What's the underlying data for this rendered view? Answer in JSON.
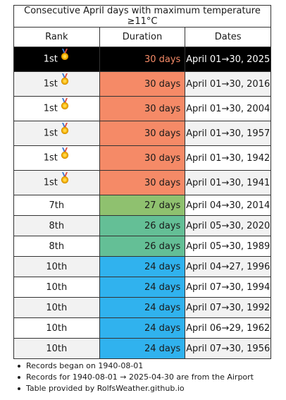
{
  "title": "Consecutive April days with maximum temperature ≥11°C",
  "headers": {
    "rank": "Rank",
    "duration": "Duration",
    "dates": "Dates"
  },
  "colors": {
    "orange": "#f58a67",
    "green": "#8fc16f",
    "teal": "#64bf96",
    "blue": "#30b2ee",
    "highlight": "#000000"
  },
  "rows": [
    {
      "rank": "1st",
      "medal": "gold-medal-icon",
      "duration": "30 days",
      "dates": "April 01→30, 2025",
      "color": "orange",
      "highlight": true
    },
    {
      "rank": "1st",
      "medal": "gold-medal-icon",
      "duration": "30 days",
      "dates": "April 01→30, 2016",
      "color": "orange"
    },
    {
      "rank": "1st",
      "medal": "gold-medal-icon",
      "duration": "30 days",
      "dates": "April 01→30, 2004",
      "color": "orange"
    },
    {
      "rank": "1st",
      "medal": "gold-medal-icon",
      "duration": "30 days",
      "dates": "April 01→30, 1957",
      "color": "orange"
    },
    {
      "rank": "1st",
      "medal": "gold-medal-icon",
      "duration": "30 days",
      "dates": "April 01→30, 1942",
      "color": "orange"
    },
    {
      "rank": "1st",
      "medal": "gold-medal-icon",
      "duration": "30 days",
      "dates": "April 01→30, 1941",
      "color": "orange"
    },
    {
      "rank": "7th",
      "duration": "27 days",
      "dates": "April 04→30, 2014",
      "color": "green"
    },
    {
      "rank": "8th",
      "duration": "26 days",
      "dates": "April 05→30, 2020",
      "color": "teal"
    },
    {
      "rank": "8th",
      "duration": "26 days",
      "dates": "April 05→30, 1989",
      "color": "teal"
    },
    {
      "rank": "10th",
      "duration": "24 days",
      "dates": "April 04→27, 1996",
      "color": "blue"
    },
    {
      "rank": "10th",
      "duration": "24 days",
      "dates": "April 07→30, 1994",
      "color": "blue"
    },
    {
      "rank": "10th",
      "duration": "24 days",
      "dates": "April 07→30, 1992",
      "color": "blue"
    },
    {
      "rank": "10th",
      "duration": "24 days",
      "dates": "April 06→29, 1962",
      "color": "blue"
    },
    {
      "rank": "10th",
      "duration": "24 days",
      "dates": "April 07→30, 1956",
      "color": "blue"
    }
  ],
  "notes": [
    "Records began on 1940-08-01",
    "Records for 1940-08-01 → 2025-04-30 are from the Airport",
    "Table provided by RolfsWeather.github.io"
  ]
}
